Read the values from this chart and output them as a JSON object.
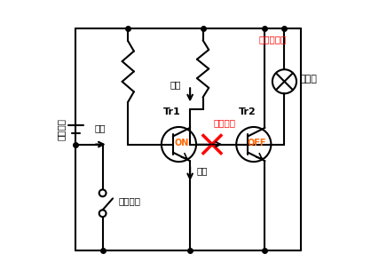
{
  "bg_color": "#ffffff",
  "line_color": "#000000",
  "red_color": "#ff0000",
  "labels": {
    "battery": "バッテリ",
    "switch": "スイッチ",
    "tr1": "Tr1",
    "tr2": "Tr2",
    "on": "ON",
    "off": "OFF",
    "lamp": "ランプ",
    "current1": "電流",
    "current2": "電流",
    "current3": "電流",
    "no_flow": "流れない",
    "no_light": "点灯しない"
  }
}
